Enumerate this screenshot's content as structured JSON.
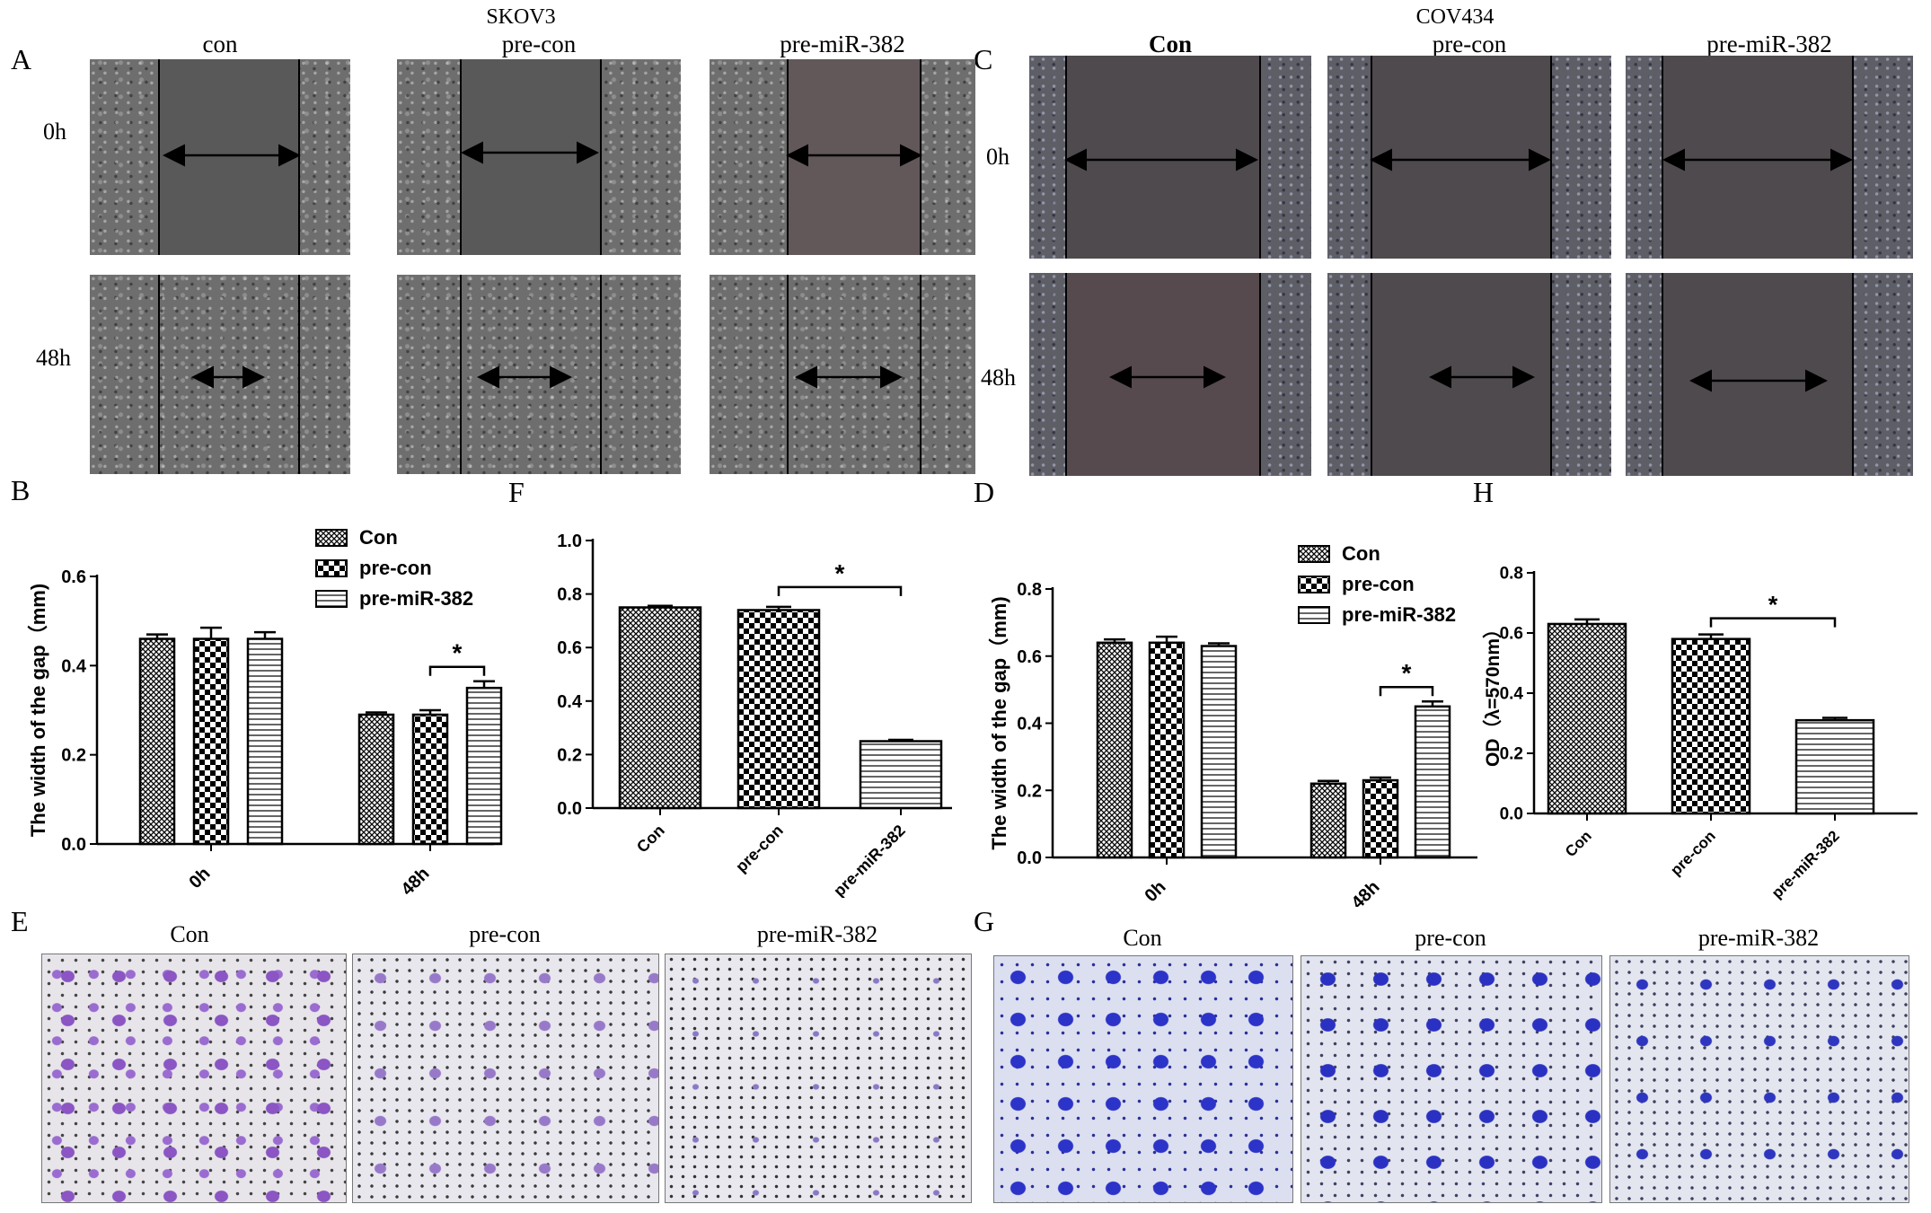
{
  "panel_labels": {
    "A": "A",
    "B": "B",
    "C": "C",
    "D": "D",
    "E": "E",
    "F": "F",
    "G": "G",
    "H": "H"
  },
  "panel_a": {
    "cell_line": "SKOV3",
    "columns": [
      "con",
      "pre-con",
      "pre-miR-382"
    ],
    "rows": [
      "0h",
      "48h"
    ]
  },
  "panel_c": {
    "cell_line": "COV434",
    "columns": [
      "Con",
      "pre-con",
      "pre-miR-382"
    ],
    "rows": [
      "0h",
      "48h"
    ]
  },
  "panel_e": {
    "columns": [
      "Con",
      "pre-con",
      "pre-miR-382"
    ]
  },
  "panel_g": {
    "columns": [
      "Con",
      "pre-con",
      "pre-miR-382"
    ]
  },
  "significance_marker": "*",
  "chart_data": [
    {
      "panel": "B",
      "type": "bar",
      "categories": [
        "0h",
        "48h"
      ],
      "series": [
        {
          "name": "Con",
          "values": [
            0.46,
            0.29
          ],
          "errors": [
            0.01,
            0.005
          ]
        },
        {
          "name": "pre-con",
          "values": [
            0.46,
            0.29
          ],
          "errors": [
            0.025,
            0.01
          ]
        },
        {
          "name": "pre-miR-382",
          "values": [
            0.46,
            0.35
          ],
          "errors": [
            0.015,
            0.015
          ]
        }
      ],
      "ylabel": "The width of the gap（mm)",
      "ylim": [
        0,
        0.6
      ],
      "yticks": [
        "0.0",
        "0.2",
        "0.4",
        "0.6"
      ],
      "legend": "top-right",
      "significance": [
        {
          "category": "48h",
          "from": "pre-con",
          "to": "pre-miR-382",
          "label": "*"
        }
      ]
    },
    {
      "panel": "F",
      "type": "bar",
      "categories": [
        "Con",
        "pre-con",
        "pre-miR-382"
      ],
      "values": [
        0.75,
        0.74,
        0.25
      ],
      "errors": [
        0.006,
        0.012,
        0.005
      ],
      "ylim": [
        0,
        1.0
      ],
      "yticks": [
        "0.0",
        "0.2",
        "0.4",
        "0.6",
        "0.8",
        "1.0"
      ],
      "significance": [
        {
          "from": "pre-con",
          "to": "pre-miR-382",
          "label": "*"
        }
      ]
    },
    {
      "panel": "D",
      "type": "bar",
      "categories": [
        "0h",
        "48h"
      ],
      "series": [
        {
          "name": "Con",
          "values": [
            0.64,
            0.22
          ],
          "errors": [
            0.01,
            0.008
          ]
        },
        {
          "name": "pre-con",
          "values": [
            0.64,
            0.23
          ],
          "errors": [
            0.018,
            0.008
          ]
        },
        {
          "name": "pre-miR-382",
          "values": [
            0.63,
            0.45
          ],
          "errors": [
            0.008,
            0.015
          ]
        }
      ],
      "ylabel": "The width of the gap（mm)",
      "ylim": [
        0,
        0.8
      ],
      "yticks": [
        "0.0",
        "0.2",
        "0.4",
        "0.6",
        "0.8"
      ],
      "legend": "top-right",
      "significance": [
        {
          "category": "48h",
          "from": "pre-con",
          "to": "pre-miR-382",
          "label": "*"
        }
      ]
    },
    {
      "panel": "H",
      "type": "bar",
      "categories": [
        "Con",
        "pre-con",
        "pre-miR-382"
      ],
      "values": [
        0.63,
        0.58,
        0.31
      ],
      "errors": [
        0.015,
        0.015,
        0.008
      ],
      "ylabel": "OD（λ=570nm）",
      "ylim": [
        0,
        0.8
      ],
      "yticks": [
        "0.0",
        "0.2",
        "0.4",
        "0.6",
        "0.8"
      ],
      "significance": [
        {
          "from": "pre-con",
          "to": "pre-miR-382",
          "label": "*"
        }
      ]
    }
  ]
}
